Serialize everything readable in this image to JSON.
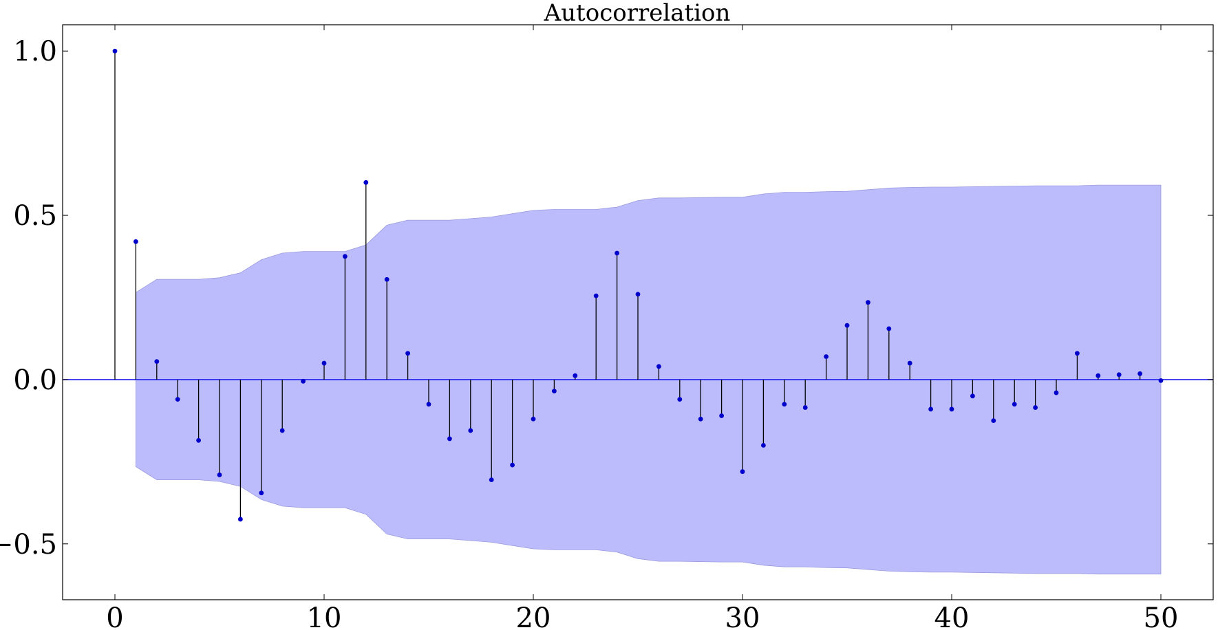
{
  "chart_data": {
    "type": "stem",
    "title": "Autocorrelation",
    "xlabel": "",
    "ylabel": "",
    "xlim": [
      -2.5,
      52.5
    ],
    "ylim": [
      -0.67,
      1.08
    ],
    "x_ticks": [
      0,
      10,
      20,
      30,
      40,
      50
    ],
    "x_tick_labels": [
      "0",
      "10",
      "20",
      "30",
      "40",
      "50"
    ],
    "y_ticks": [
      1.0,
      0.5,
      0.0,
      -0.5
    ],
    "y_tick_labels": [
      "1.0",
      "0.5",
      "0.0",
      "−0.5"
    ],
    "grid": false,
    "lags": [
      0,
      1,
      2,
      3,
      4,
      5,
      6,
      7,
      8,
      9,
      10,
      11,
      12,
      13,
      14,
      15,
      16,
      17,
      18,
      19,
      20,
      21,
      22,
      23,
      24,
      25,
      26,
      27,
      28,
      29,
      30,
      31,
      32,
      33,
      34,
      35,
      36,
      37,
      38,
      39,
      40,
      41,
      42,
      43,
      44,
      45,
      46,
      47,
      48,
      49,
      50
    ],
    "acf": [
      1.0,
      0.42,
      0.055,
      -0.06,
      -0.185,
      -0.29,
      -0.425,
      -0.345,
      -0.155,
      -0.005,
      0.05,
      0.375,
      0.6,
      0.305,
      0.08,
      -0.075,
      -0.18,
      -0.155,
      -0.305,
      -0.26,
      -0.12,
      -0.035,
      0.012,
      0.255,
      0.385,
      0.26,
      0.04,
      -0.06,
      -0.12,
      -0.11,
      -0.28,
      -0.2,
      -0.075,
      -0.085,
      0.07,
      0.165,
      0.235,
      0.155,
      0.05,
      -0.09,
      -0.09,
      -0.05,
      -0.125,
      -0.075,
      -0.085,
      -0.04,
      0.08,
      0.012,
      0.015,
      0.018,
      -0.003
    ],
    "confidence_band": {
      "lags": [
        1,
        2,
        3,
        4,
        5,
        6,
        7,
        8,
        9,
        10,
        11,
        12,
        13,
        14,
        15,
        16,
        17,
        18,
        19,
        20,
        21,
        22,
        23,
        24,
        25,
        26,
        27,
        28,
        29,
        30,
        31,
        32,
        33,
        34,
        35,
        36,
        37,
        38,
        39,
        40,
        41,
        42,
        43,
        44,
        45,
        46,
        47,
        48,
        49,
        50
      ],
      "upper": [
        0.265,
        0.305,
        0.305,
        0.305,
        0.31,
        0.325,
        0.365,
        0.385,
        0.39,
        0.39,
        0.39,
        0.41,
        0.47,
        0.485,
        0.485,
        0.485,
        0.49,
        0.495,
        0.505,
        0.515,
        0.518,
        0.518,
        0.518,
        0.525,
        0.545,
        0.553,
        0.553,
        0.554,
        0.555,
        0.555,
        0.565,
        0.57,
        0.57,
        0.572,
        0.573,
        0.578,
        0.583,
        0.585,
        0.586,
        0.586,
        0.587,
        0.588,
        0.589,
        0.59,
        0.59,
        0.59,
        0.592,
        0.592,
        0.592,
        0.592
      ]
    },
    "colors": {
      "band": "#bcbcfc",
      "markers": "#0000cc",
      "stems": "#000000",
      "zero_line": "#2222ee"
    }
  }
}
